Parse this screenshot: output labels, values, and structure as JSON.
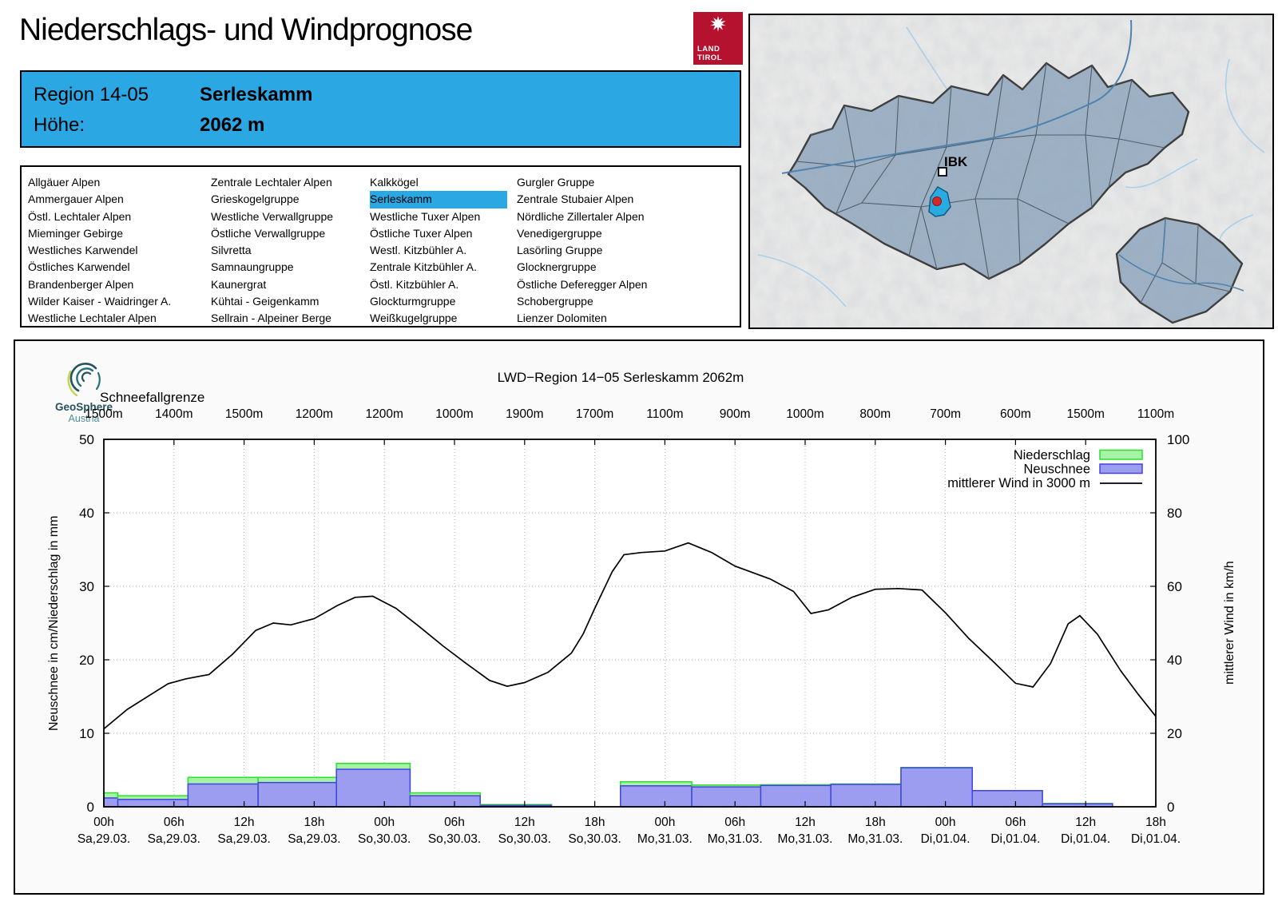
{
  "header": {
    "title": "Niederschlags- und Windprognose",
    "region_label": "Region 14-05",
    "region_name": "Serleskamm",
    "elevation_label": "Höhe:",
    "elevation_value": "2062 m"
  },
  "land_tirol_logo": {
    "line1": "LAND",
    "line2": "TIROL"
  },
  "geosphere_logo": {
    "line1": "GeoSphere",
    "line2": "Austria"
  },
  "map": {
    "city_label": "IBK"
  },
  "region_list": {
    "selected": "Serleskamm",
    "columns": [
      [
        "Allgäuer Alpen",
        "Ammergauer Alpen",
        "Östl. Lechtaler Alpen",
        "Mieminger Gebirge",
        "Westliches Karwendel",
        "Östliches Karwendel",
        "Brandenberger Alpen",
        "Wilder Kaiser - Waidringer A.",
        "Westliche Lechtaler Alpen"
      ],
      [
        "Zentrale Lechtaler Alpen",
        "Grieskogelgruppe",
        "Westliche Verwallgruppe",
        "Östliche Verwallgruppe",
        "Silvretta",
        "Samnaungruppe",
        "Kaunergrat",
        "Kühtai - Geigenkamm",
        "Sellrain - Alpeiner Berge"
      ],
      [
        "Kalkkögel",
        "Serleskamm",
        "Westliche Tuxer Alpen",
        "Östliche Tuxer Alpen",
        "Westl. Kitzbühler A.",
        "Zentrale Kitzbühler A.",
        "Östl. Kitzbühler A.",
        "Glockturmgruppe",
        "Weißkugelgruppe"
      ],
      [
        "Gurgler Gruppe",
        "Zentrale Stubaier Alpen",
        "Nördliche Zillertaler Alpen",
        "Venedigergruppe",
        "Lasörling Gruppe",
        "Glocknergruppe",
        "Östliche Deferegger Alpen",
        "Schobergruppe",
        "Lienzer Dolomiten"
      ]
    ]
  },
  "chart_data": {
    "type": "bar-line-composite",
    "title": "LWD−Region 14−05 Serleskamm 2062m",
    "snowline_label": "Schneefallgrenze",
    "snowline_values_m": [
      "1500m",
      "1400m",
      "1500m",
      "1200m",
      "1200m",
      "1000m",
      "1900m",
      "1700m",
      "1100m",
      "900m",
      "1000m",
      "800m",
      "700m",
      "600m",
      "1500m",
      "1100m"
    ],
    "x_ticks": [
      {
        "time": "00h",
        "date": "Sa,29.03."
      },
      {
        "time": "06h",
        "date": "Sa,29.03."
      },
      {
        "time": "12h",
        "date": "Sa,29.03."
      },
      {
        "time": "18h",
        "date": "Sa,29.03."
      },
      {
        "time": "00h",
        "date": "So,30.03."
      },
      {
        "time": "06h",
        "date": "So,30.03."
      },
      {
        "time": "12h",
        "date": "So,30.03."
      },
      {
        "time": "18h",
        "date": "So,30.03."
      },
      {
        "time": "00h",
        "date": "Mo,31.03."
      },
      {
        "time": "06h",
        "date": "Mo,31.03."
      },
      {
        "time": "12h",
        "date": "Mo,31.03."
      },
      {
        "time": "18h",
        "date": "Mo,31.03."
      },
      {
        "time": "00h",
        "date": "Di,01.04."
      },
      {
        "time": "06h",
        "date": "Di,01.04."
      },
      {
        "time": "12h",
        "date": "Di,01.04."
      },
      {
        "time": "18h",
        "date": "Di,01.04."
      }
    ],
    "x_range_hours": [
      0,
      90
    ],
    "ylabel_left": "Neuschnee in cm/Niederschlag in mm",
    "ylim_left": [
      0,
      50
    ],
    "ylabel_right": "mittlerer Wind in km/h",
    "ylim_right": [
      0,
      100
    ],
    "grid": true,
    "legend_position": "top-right-inside",
    "legend": [
      {
        "label": "Niederschlag",
        "type": "box",
        "fill": "#a6f2a6",
        "stroke": "#2ae02a"
      },
      {
        "label": "Neuschnee",
        "type": "box",
        "fill": "#9c9cf0",
        "stroke": "#4343de"
      },
      {
        "label": "mittlerer Wind in 3000 m",
        "type": "line",
        "stroke": "#000000"
      }
    ],
    "bars_6h": [
      {
        "start_h": 0.0,
        "end_h": 1.2,
        "niederschlag_mm": 1.9,
        "neuschnee_cm": 1.2
      },
      {
        "start_h": 1.2,
        "end_h": 7.2,
        "niederschlag_mm": 1.5,
        "neuschnee_cm": 1.0
      },
      {
        "start_h": 7.2,
        "end_h": 13.2,
        "niederschlag_mm": 4.0,
        "neuschnee_cm": 3.1
      },
      {
        "start_h": 13.2,
        "end_h": 19.9,
        "niederschlag_mm": 4.0,
        "neuschnee_cm": 3.3
      },
      {
        "start_h": 19.9,
        "end_h": 26.2,
        "niederschlag_mm": 5.9,
        "neuschnee_cm": 5.1
      },
      {
        "start_h": 26.2,
        "end_h": 32.2,
        "niederschlag_mm": 1.9,
        "neuschnee_cm": 1.5
      },
      {
        "start_h": 32.2,
        "end_h": 38.3,
        "niederschlag_mm": 0.3,
        "neuschnee_cm": 0.2
      },
      {
        "start_h": 44.2,
        "end_h": 50.3,
        "niederschlag_mm": 3.4,
        "neuschnee_cm": 2.85
      },
      {
        "start_h": 50.3,
        "end_h": 56.2,
        "niederschlag_mm": 2.95,
        "neuschnee_cm": 2.7
      },
      {
        "start_h": 56.2,
        "end_h": 62.2,
        "niederschlag_mm": 3.0,
        "neuschnee_cm": 2.9
      },
      {
        "start_h": 62.2,
        "end_h": 68.2,
        "niederschlag_mm": 3.1,
        "neuschnee_cm": 3.05
      },
      {
        "start_h": 68.2,
        "end_h": 74.3,
        "niederschlag_mm": 5.35,
        "neuschnee_cm": 5.3
      },
      {
        "start_h": 74.3,
        "end_h": 80.3,
        "niederschlag_mm": 2.2,
        "neuschnee_cm": 2.2
      },
      {
        "start_h": 80.3,
        "end_h": 86.3,
        "niederschlag_mm": 0.45,
        "neuschnee_cm": 0.4
      }
    ],
    "wind_3000m_kmh": [
      [
        0,
        21.2
      ],
      [
        2,
        26.5
      ],
      [
        4,
        30.5
      ],
      [
        5.5,
        33.5
      ],
      [
        7,
        34.8
      ],
      [
        9,
        36.0
      ],
      [
        11,
        41.5
      ],
      [
        13,
        48.0
      ],
      [
        14.5,
        50.0
      ],
      [
        16,
        49.5
      ],
      [
        18,
        51.2
      ],
      [
        20,
        54.8
      ],
      [
        21.5,
        57.0
      ],
      [
        23,
        57.3
      ],
      [
        25,
        54.0
      ],
      [
        27,
        49.0
      ],
      [
        29,
        43.8
      ],
      [
        31,
        39.0
      ],
      [
        33,
        34.4
      ],
      [
        34.5,
        32.8
      ],
      [
        36,
        33.8
      ],
      [
        38,
        36.6
      ],
      [
        40,
        41.8
      ],
      [
        41,
        47.0
      ],
      [
        42,
        54.0
      ],
      [
        43.5,
        64.0
      ],
      [
        44.5,
        68.6
      ],
      [
        46,
        69.2
      ],
      [
        48,
        69.6
      ],
      [
        50,
        71.8
      ],
      [
        52,
        69.2
      ],
      [
        54,
        65.5
      ],
      [
        57,
        62.0
      ],
      [
        59,
        58.6
      ],
      [
        60.5,
        52.6
      ],
      [
        62,
        53.6
      ],
      [
        64,
        57.0
      ],
      [
        66,
        59.2
      ],
      [
        68,
        59.4
      ],
      [
        70,
        59.0
      ],
      [
        72,
        52.8
      ],
      [
        74,
        45.8
      ],
      [
        76,
        39.8
      ],
      [
        78,
        33.6
      ],
      [
        79.5,
        32.6
      ],
      [
        81,
        39.0
      ],
      [
        82.5,
        49.8
      ],
      [
        83.5,
        52.0
      ],
      [
        85,
        47.0
      ],
      [
        87,
        37.0
      ],
      [
        88.5,
        30.6
      ],
      [
        90,
        24.6
      ]
    ]
  },
  "colors": {
    "accent_blue": "#2ba7e4",
    "precip_fill": "#a6f2a6",
    "precip_stroke": "#2ae02a",
    "snow_fill": "#9c9cf0",
    "snow_stroke": "#4343de",
    "wind_line": "#000000",
    "tirol_red": "#b5122f",
    "map_region_fill": "#8ea6bd",
    "map_highlight": "#29abe2",
    "map_marker_red": "#d62828"
  }
}
